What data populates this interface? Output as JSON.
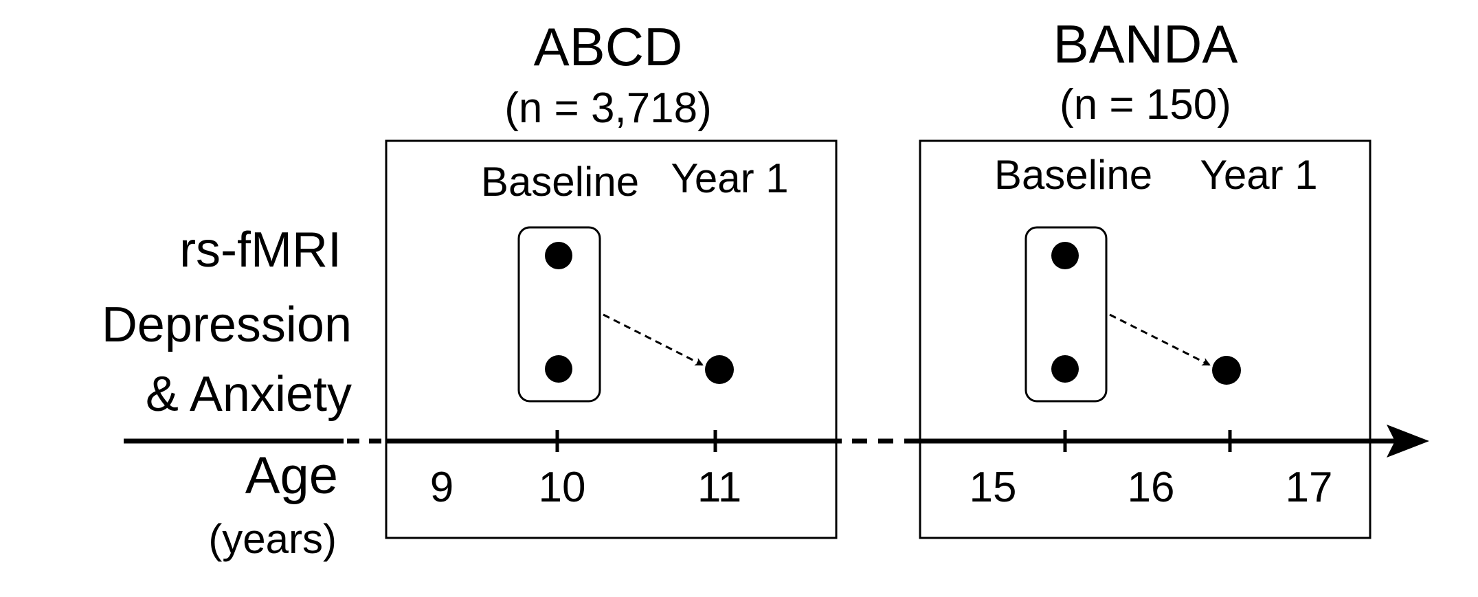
{
  "row_labels": {
    "rsfmri": "rs-fMRI",
    "depression": "Depression",
    "anxiety": "& Anxiety",
    "age": "Age",
    "years": "(years)"
  },
  "studies": [
    {
      "name": "ABCD",
      "n_label": "(n = 3,718)",
      "waves": [
        "Baseline",
        "Year 1"
      ],
      "age_ticks": [
        "9",
        "10",
        "11"
      ]
    },
    {
      "name": "BANDA",
      "n_label": "(n = 150)",
      "waves": [
        "Baseline",
        "Year 1"
      ],
      "age_ticks": [
        "15",
        "16",
        "17"
      ]
    }
  ],
  "colors": {
    "ink": "#000000",
    "background": "#ffffff"
  }
}
